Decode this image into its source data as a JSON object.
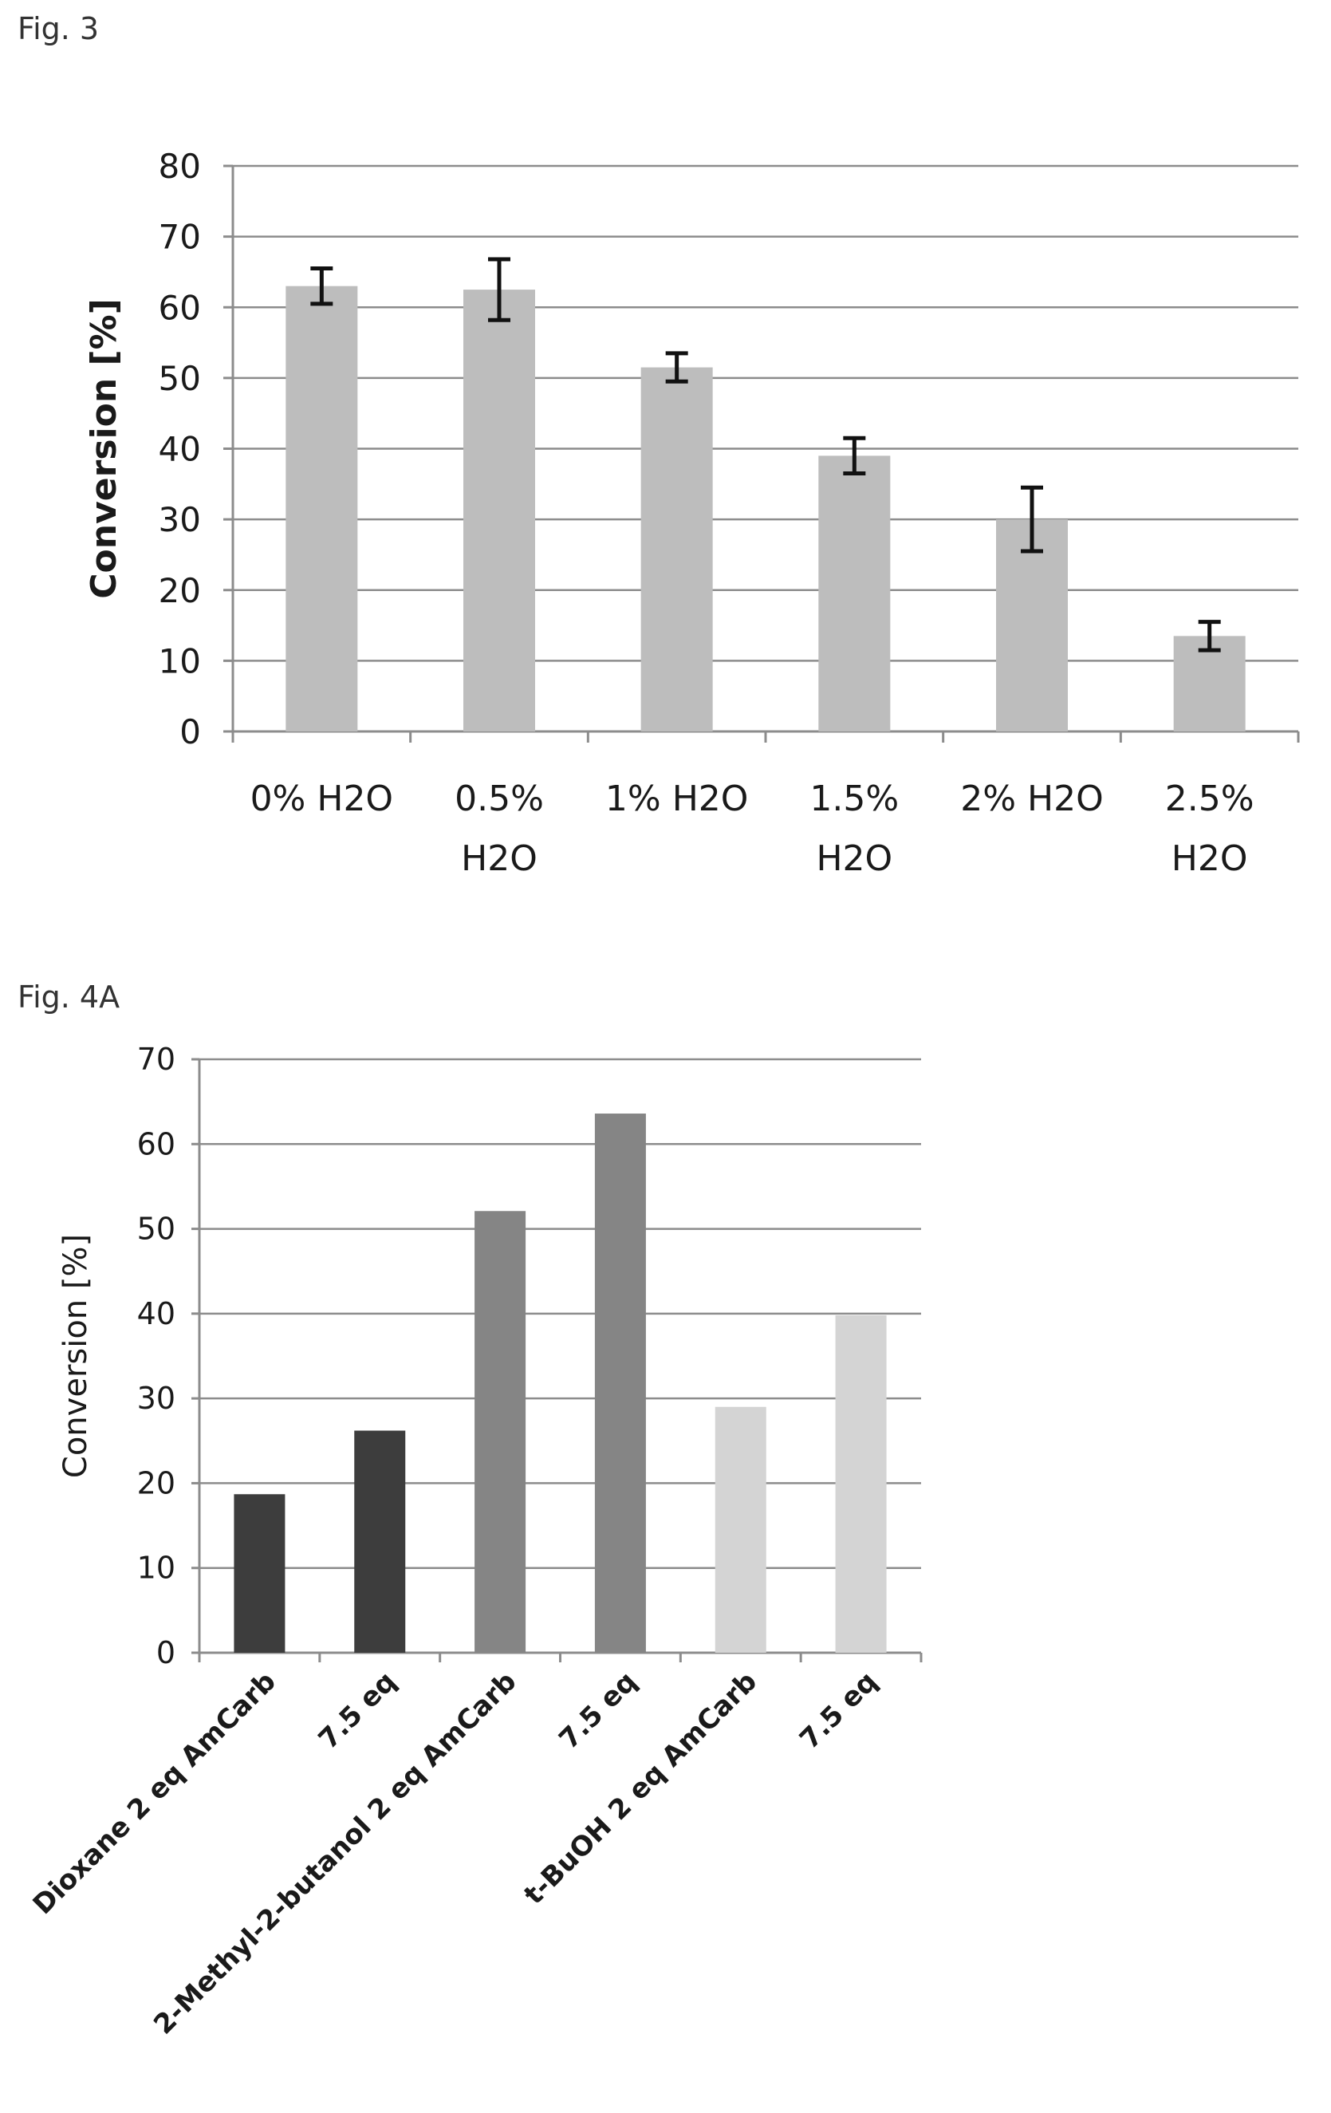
{
  "figures": {
    "fig3_label": "Fig. 3",
    "fig4a_label": "Fig. 4A"
  },
  "chart_data": [
    {
      "id": "fig3",
      "type": "bar",
      "title": "",
      "xlabel": "",
      "ylabel": "Conversion [%]",
      "ylim": [
        0,
        80
      ],
      "yticks": [
        0,
        10,
        20,
        30,
        40,
        50,
        60,
        70,
        80
      ],
      "grid": true,
      "categories": [
        [
          "0% H2O"
        ],
        [
          "0.5%",
          "H2O"
        ],
        [
          "1% H2O"
        ],
        [
          "1.5%",
          "H2O"
        ],
        [
          "2% H2O"
        ],
        [
          "2.5%",
          "H2O"
        ]
      ],
      "values": [
        63,
        62.5,
        51.5,
        39,
        30,
        13.5
      ],
      "errors": [
        2.5,
        4.3,
        2.0,
        2.5,
        4.5,
        2.0
      ],
      "bar_color": "#bdbdbd"
    },
    {
      "id": "fig4a",
      "type": "bar",
      "title": "",
      "xlabel": "",
      "ylabel": "Conversion [%]",
      "ylim": [
        0,
        70
      ],
      "yticks": [
        0,
        10,
        20,
        30,
        40,
        50,
        60,
        70
      ],
      "grid": true,
      "categories": [
        "Dioxane 2 eq AmCarb",
        "7.5 eq",
        "2-Methyl-2-butanol 2 eq AmCarb",
        "7.5 eq",
        "t-BuOH 2 eq AmCarb",
        "7.5 eq"
      ],
      "values": [
        18.7,
        26.2,
        52.1,
        63.6,
        29.0,
        39.8
      ],
      "bar_colors": [
        "#3d3d3d",
        "#3d3d3d",
        "#858585",
        "#858585",
        "#d4d4d4",
        "#d4d4d4"
      ]
    }
  ]
}
